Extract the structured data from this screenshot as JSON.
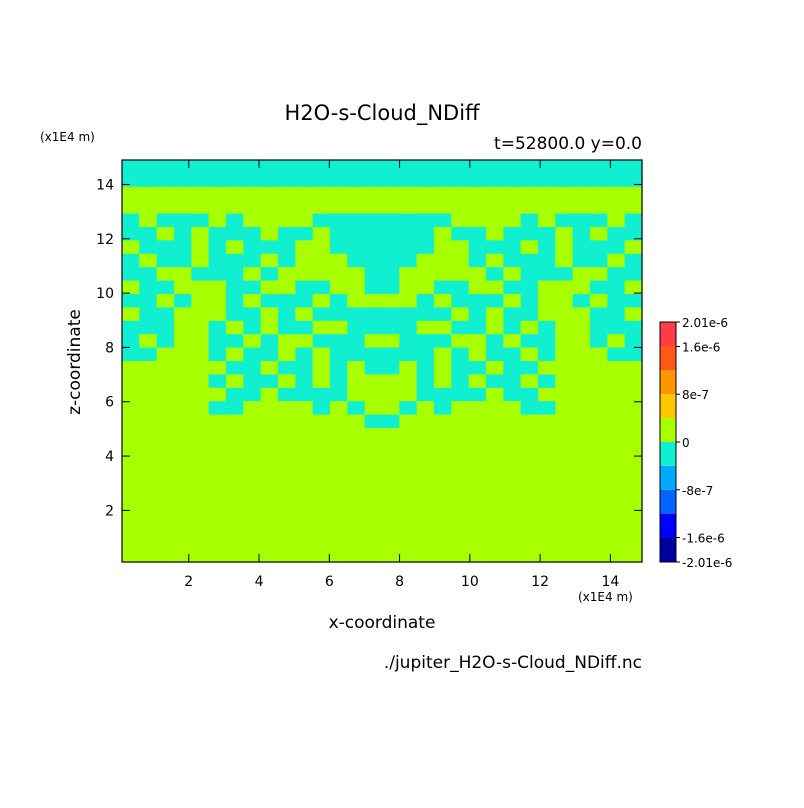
{
  "chart_data": {
    "type": "field",
    "title": "H2O-s-Cloud_NDiff",
    "subtitle": "t=52800.0 y=0.0",
    "xlabel": "x-coordinate",
    "ylabel": "z-coordinate",
    "x_unit": "(x1E4 m)",
    "y_unit": "(x1E4 m)",
    "source": "./jupiter_H2O-s-Cloud_NDiff.nc",
    "xlim": [
      0.1,
      14.9
    ],
    "ylim": [
      0.1,
      14.9
    ],
    "xticks": [
      2,
      4,
      6,
      8,
      10,
      12,
      14
    ],
    "yticks": [
      2,
      4,
      6,
      8,
      10,
      12,
      14
    ],
    "levels": [
      -2.01e-06,
      -1.6e-06,
      -1.2e-06,
      -8e-07,
      -4e-07,
      0,
      4e-07,
      8e-07,
      1.2e-06,
      1.6e-06,
      2.01e-06
    ],
    "colors": [
      "#0000a0",
      "#0000ff",
      "#0064ff",
      "#00a8ff",
      "#10f0d0",
      "#a8ff00",
      "#ffc800",
      "#ff9600",
      "#ff5a14",
      "#ff3c46"
    ],
    "cticks": [
      {
        "value": 2.01e-06,
        "label": "2.01e-6"
      },
      {
        "value": 1.6e-06,
        "label": "1.6e-6"
      },
      8e-07,
      0,
      -8e-07,
      {
        "value": -1.6e-06,
        "label": "-1.6e-6"
      },
      {
        "value": -2.01e-06,
        "label": "-2.01e-6"
      }
    ],
    "z": [
      [
        -2e-07,
        -2e-07,
        -2e-07,
        -2e-07,
        -2e-07,
        -2e-07,
        -2e-07,
        -2e-07,
        -2e-07,
        -2e-07,
        -2e-07,
        -2e-07,
        -2e-07,
        -2e-07,
        -2e-07,
        -2e-07,
        -2e-07,
        -2e-07,
        -2e-07,
        -2e-07,
        -2e-07,
        -2e-07,
        -2e-07,
        -2e-07,
        -2e-07,
        -2e-07,
        -2e-07,
        -2e-07,
        -2e-07,
        -2e-07
      ],
      [
        -2e-07,
        -2e-07,
        -2e-07,
        -2e-07,
        -2e-07,
        -2e-07,
        -2e-07,
        -2e-07,
        -2e-07,
        -2e-07,
        -2e-07,
        -2e-07,
        -2e-07,
        -2e-07,
        -2e-07,
        -2e-07,
        -2e-07,
        -2e-07,
        -2e-07,
        -2e-07,
        -2e-07,
        -2e-07,
        -2e-07,
        -2e-07,
        -2e-07,
        -2e-07,
        -2e-07,
        -2e-07,
        -2e-07,
        -2e-07
      ],
      [
        0,
        0,
        0,
        0,
        0,
        0,
        0,
        0,
        0,
        0,
        0,
        0,
        0,
        0,
        0,
        0,
        0,
        0,
        0,
        0,
        0,
        0,
        0,
        0,
        0,
        0,
        0,
        0,
        0,
        0
      ],
      [
        0,
        0,
        0,
        0,
        0,
        0,
        0,
        0,
        0,
        0,
        0,
        0,
        0,
        0,
        0,
        0,
        0,
        0,
        0,
        0,
        0,
        0,
        0,
        0,
        0,
        0,
        0,
        0,
        0,
        0
      ],
      [
        -2e-07,
        0,
        -2e-07,
        -2e-07,
        -2e-07,
        0,
        -2e-07,
        0,
        0,
        0,
        0,
        -2e-07,
        -2e-07,
        -2e-07,
        -2e-07,
        -2e-07,
        -2e-07,
        -2e-07,
        -2e-07,
        0,
        0,
        0,
        0,
        -2e-07,
        0,
        -2e-07,
        -2e-07,
        -2e-07,
        0,
        -2e-07
      ],
      [
        -2e-07,
        -2e-07,
        0,
        -2e-07,
        0,
        -2e-07,
        -2e-07,
        -2e-07,
        0,
        -2e-07,
        -2e-07,
        0,
        -2e-07,
        -2e-07,
        -2e-07,
        -2e-07,
        -2e-07,
        -2e-07,
        0,
        -2e-07,
        -2e-07,
        0,
        -2e-07,
        -2e-07,
        -2e-07,
        0,
        -2e-07,
        0,
        -2e-07,
        -2e-07
      ],
      [
        0,
        -2e-07,
        -2e-07,
        -2e-07,
        0,
        -2e-07,
        0,
        -2e-07,
        -2e-07,
        -2e-07,
        0,
        0,
        -2e-07,
        -2e-07,
        -2e-07,
        -2e-07,
        -2e-07,
        -2e-07,
        0,
        0,
        -2e-07,
        -2e-07,
        -2e-07,
        0,
        -2e-07,
        0,
        -2e-07,
        -2e-07,
        -2e-07,
        0
      ],
      [
        -2e-07,
        0,
        -2e-07,
        -2e-07,
        0,
        -2e-07,
        -2e-07,
        -2e-07,
        0,
        -2e-07,
        0,
        0,
        0,
        -2e-07,
        -2e-07,
        -2e-07,
        -2e-07,
        0,
        0,
        0,
        -2e-07,
        0,
        -2e-07,
        -2e-07,
        -2e-07,
        0,
        -2e-07,
        -2e-07,
        0,
        -2e-07
      ],
      [
        -2e-07,
        -2e-07,
        0,
        0,
        -2e-07,
        -2e-07,
        -2e-07,
        0,
        -2e-07,
        0,
        0,
        0,
        0,
        0,
        -2e-07,
        -2e-07,
        0,
        0,
        0,
        0,
        0,
        -2e-07,
        0,
        -2e-07,
        -2e-07,
        -2e-07,
        0,
        0,
        -2e-07,
        -2e-07
      ],
      [
        0,
        -2e-07,
        -2e-07,
        0,
        0,
        0,
        -2e-07,
        -2e-07,
        0,
        0,
        -2e-07,
        -2e-07,
        0,
        0,
        -2e-07,
        -2e-07,
        0,
        0,
        -2e-07,
        -2e-07,
        0,
        0,
        -2e-07,
        -2e-07,
        0,
        0,
        0,
        -2e-07,
        -2e-07,
        0
      ],
      [
        -2e-07,
        -2e-07,
        0,
        -2e-07,
        0,
        0,
        -2e-07,
        0,
        -2e-07,
        -2e-07,
        -2e-07,
        0,
        -2e-07,
        0,
        0,
        0,
        0,
        -2e-07,
        0,
        -2e-07,
        -2e-07,
        -2e-07,
        0,
        -2e-07,
        0,
        0,
        -2e-07,
        0,
        -2e-07,
        -2e-07
      ],
      [
        0,
        -2e-07,
        -2e-07,
        0,
        0,
        0,
        -2e-07,
        -2e-07,
        0,
        -2e-07,
        0,
        -2e-07,
        -2e-07,
        -2e-07,
        -2e-07,
        -2e-07,
        -2e-07,
        -2e-07,
        -2e-07,
        0,
        -2e-07,
        0,
        -2e-07,
        -2e-07,
        0,
        0,
        0,
        -2e-07,
        -2e-07,
        0
      ],
      [
        -2e-07,
        -2e-07,
        -2e-07,
        0,
        0,
        -2e-07,
        0,
        -2e-07,
        0,
        -2e-07,
        -2e-07,
        0,
        0,
        -2e-07,
        -2e-07,
        -2e-07,
        -2e-07,
        0,
        0,
        -2e-07,
        -2e-07,
        0,
        -2e-07,
        0,
        -2e-07,
        0,
        0,
        -2e-07,
        -2e-07,
        -2e-07
      ],
      [
        -2e-07,
        0,
        -2e-07,
        0,
        0,
        -2e-07,
        -2e-07,
        0,
        -2e-07,
        0,
        0,
        -2e-07,
        -2e-07,
        -2e-07,
        0,
        0,
        -2e-07,
        -2e-07,
        -2e-07,
        0,
        0,
        -2e-07,
        0,
        -2e-07,
        -2e-07,
        0,
        0,
        -2e-07,
        0,
        -2e-07
      ],
      [
        -2e-07,
        -2e-07,
        0,
        0,
        0,
        -2e-07,
        0,
        -2e-07,
        -2e-07,
        0,
        -2e-07,
        0,
        -2e-07,
        -2e-07,
        -2e-07,
        -2e-07,
        -2e-07,
        -2e-07,
        0,
        -2e-07,
        0,
        -2e-07,
        -2e-07,
        0,
        -2e-07,
        0,
        0,
        0,
        -2e-07,
        -2e-07
      ],
      [
        0,
        0,
        0,
        0,
        0,
        0,
        -2e-07,
        -2e-07,
        0,
        -2e-07,
        -2e-07,
        0,
        -2e-07,
        0,
        -2e-07,
        -2e-07,
        0,
        -2e-07,
        0,
        -2e-07,
        -2e-07,
        0,
        -2e-07,
        -2e-07,
        0,
        0,
        0,
        0,
        0,
        0
      ],
      [
        0,
        0,
        0,
        0,
        0,
        -2e-07,
        0,
        -2e-07,
        -2e-07,
        0,
        -2e-07,
        0,
        -2e-07,
        0,
        0,
        0,
        0,
        -2e-07,
        0,
        -2e-07,
        0,
        -2e-07,
        -2e-07,
        0,
        -2e-07,
        0,
        0,
        0,
        0,
        0
      ],
      [
        0,
        0,
        0,
        0,
        0,
        0,
        -2e-07,
        -2e-07,
        0,
        -2e-07,
        -2e-07,
        -2e-07,
        -2e-07,
        0,
        0,
        0,
        0,
        -2e-07,
        -2e-07,
        -2e-07,
        -2e-07,
        0,
        -2e-07,
        -2e-07,
        0,
        0,
        0,
        0,
        0,
        0
      ],
      [
        0,
        0,
        0,
        0,
        0,
        -2e-07,
        -2e-07,
        0,
        0,
        0,
        0,
        -2e-07,
        0,
        -2e-07,
        0,
        0,
        -2e-07,
        0,
        -2e-07,
        0,
        0,
        0,
        0,
        -2e-07,
        -2e-07,
        0,
        0,
        0,
        0,
        0
      ],
      [
        0,
        0,
        0,
        0,
        0,
        0,
        0,
        0,
        0,
        0,
        0,
        0,
        0,
        0,
        -2e-07,
        -2e-07,
        0,
        0,
        0,
        0,
        0,
        0,
        0,
        0,
        0,
        0,
        0,
        0,
        0,
        0
      ],
      [
        0,
        0,
        0,
        0,
        0,
        0,
        0,
        0,
        0,
        0,
        0,
        0,
        0,
        0,
        0,
        0,
        0,
        0,
        0,
        0,
        0,
        0,
        0,
        0,
        0,
        0,
        0,
        0,
        0,
        0
      ],
      [
        0,
        0,
        0,
        0,
        0,
        0,
        0,
        0,
        0,
        0,
        0,
        0,
        0,
        0,
        0,
        0,
        0,
        0,
        0,
        0,
        0,
        0,
        0,
        0,
        0,
        0,
        0,
        0,
        0,
        0
      ],
      [
        0,
        0,
        0,
        0,
        0,
        0,
        0,
        0,
        0,
        0,
        0,
        0,
        0,
        0,
        0,
        0,
        0,
        0,
        0,
        0,
        0,
        0,
        0,
        0,
        0,
        0,
        0,
        0,
        0,
        0
      ],
      [
        0,
        0,
        0,
        0,
        0,
        0,
        0,
        0,
        0,
        0,
        0,
        0,
        0,
        0,
        0,
        0,
        0,
        0,
        0,
        0,
        0,
        0,
        0,
        0,
        0,
        0,
        0,
        0,
        0,
        0
      ],
      [
        0,
        0,
        0,
        0,
        0,
        0,
        0,
        0,
        0,
        0,
        0,
        0,
        0,
        0,
        0,
        0,
        0,
        0,
        0,
        0,
        0,
        0,
        0,
        0,
        0,
        0,
        0,
        0,
        0,
        0
      ],
      [
        0,
        0,
        0,
        0,
        0,
        0,
        0,
        0,
        0,
        0,
        0,
        0,
        0,
        0,
        0,
        0,
        0,
        0,
        0,
        0,
        0,
        0,
        0,
        0,
        0,
        0,
        0,
        0,
        0,
        0
      ],
      [
        0,
        0,
        0,
        0,
        0,
        0,
        0,
        0,
        0,
        0,
        0,
        0,
        0,
        0,
        0,
        0,
        0,
        0,
        0,
        0,
        0,
        0,
        0,
        0,
        0,
        0,
        0,
        0,
        0,
        0
      ],
      [
        0,
        0,
        0,
        0,
        0,
        0,
        0,
        0,
        0,
        0,
        0,
        0,
        0,
        0,
        0,
        0,
        0,
        0,
        0,
        0,
        0,
        0,
        0,
        0,
        0,
        0,
        0,
        0,
        0,
        0
      ],
      [
        0,
        0,
        0,
        0,
        0,
        0,
        0,
        0,
        0,
        0,
        0,
        0,
        0,
        0,
        0,
        0,
        0,
        0,
        0,
        0,
        0,
        0,
        0,
        0,
        0,
        0,
        0,
        0,
        0,
        0
      ],
      [
        0,
        0,
        0,
        0,
        0,
        0,
        0,
        0,
        0,
        0,
        0,
        0,
        0,
        0,
        0,
        0,
        0,
        0,
        0,
        0,
        0,
        0,
        0,
        0,
        0,
        0,
        0,
        0,
        0,
        0
      ]
    ]
  }
}
